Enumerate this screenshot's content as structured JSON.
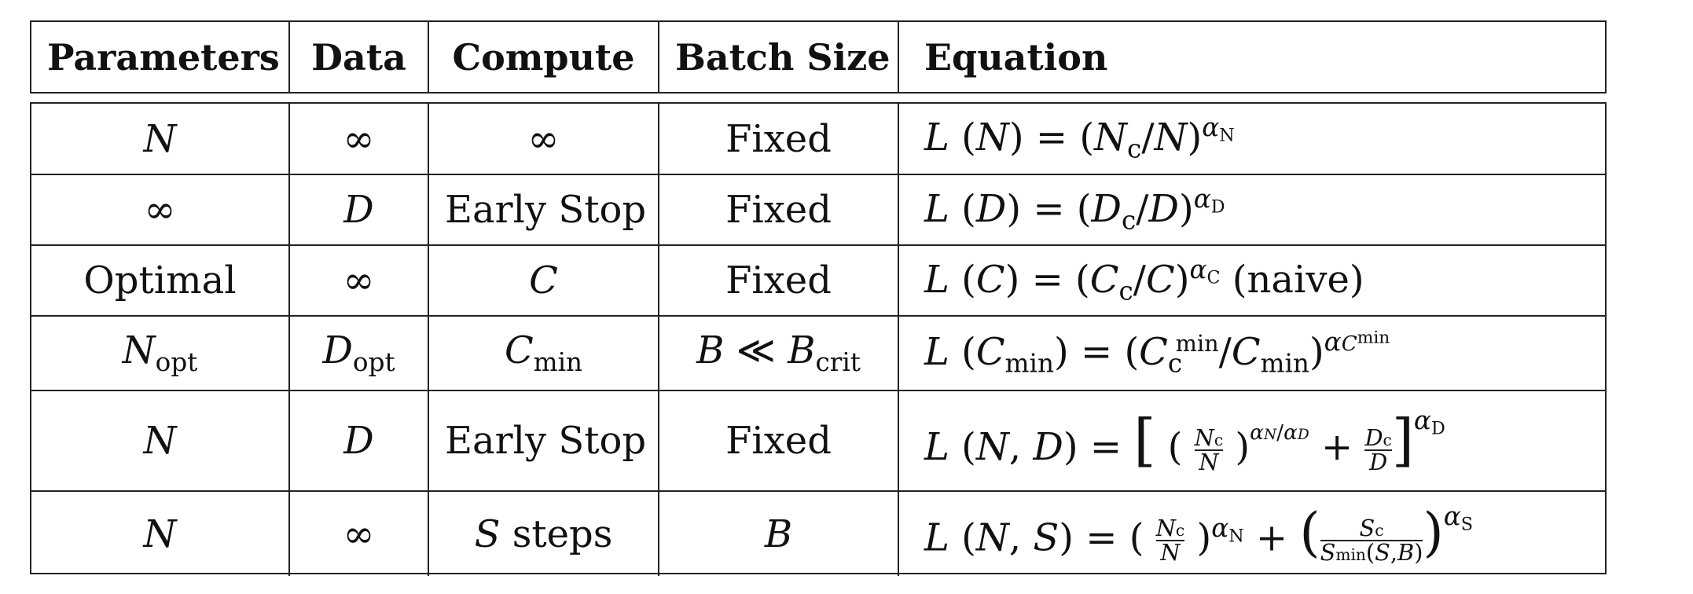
{
  "headers": [
    "Parameters",
    "Data",
    "Compute",
    "Batch Size",
    "Equation"
  ],
  "rows": [
    {
      "params": "N",
      "data": "∞",
      "compute": "∞",
      "batch": "Fixed",
      "equation": "L (N) = (Nc/N)^αN"
    },
    {
      "params": "∞",
      "data": "D",
      "compute": "Early Stop",
      "batch": "Fixed",
      "equation": "L (D) = (Dc/D)^αD"
    },
    {
      "params": "Optimal",
      "data": "∞",
      "compute": "C",
      "batch": "Fixed",
      "equation": "L (C) = (Cc/C)^αC (naive)"
    },
    {
      "params": "Nopt",
      "data": "Dopt",
      "compute": "Cmin",
      "batch": "B ≪ Bcrit",
      "equation": "L (Cmin) = (Cc^min/Cmin)^αC^min"
    },
    {
      "params": "N",
      "data": "D",
      "compute": "Early Stop",
      "batch": "Fixed",
      "equation": "L (N, D) = [(Nc/N)^(αN/αD) + Dc/D]^αD"
    },
    {
      "params": "N",
      "data": "∞",
      "compute": "S steps",
      "batch": "B",
      "equation": "L (N, S) = (Nc/N)^αN + (Sc/Smin(S,B))^αS"
    }
  ]
}
